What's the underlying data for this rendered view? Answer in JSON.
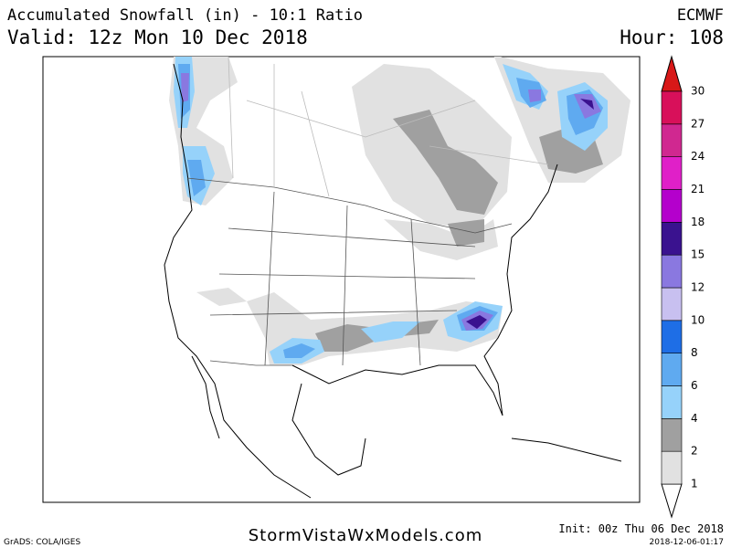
{
  "header": {
    "title": "Accumulated Snowfall (in) - 10:1 Ratio",
    "model": "ECMWF",
    "valid": "Valid: 12z Mon 10 Dec 2018",
    "hour": "Hour: 108"
  },
  "colorbar": {
    "levels": [
      1,
      2,
      4,
      6,
      8,
      10,
      12,
      15,
      18,
      21,
      24,
      27,
      30
    ],
    "colors": [
      "#e1e1e1",
      "#a0a0a0",
      "#96d2fa",
      "#5faaf0",
      "#1e6ee6",
      "#c8c0f0",
      "#8a78e0",
      "#3a128f",
      "#b400cc",
      "#e020c8",
      "#d02890",
      "#d8105a",
      "#d81818"
    ]
  },
  "footer": {
    "credit": "GrADS: COLA/IGES",
    "site": "StormVistaWxModels.com",
    "init": "Init: 00z Thu 06 Dec 2018",
    "timestamp": "2018-12-06-01:17"
  }
}
